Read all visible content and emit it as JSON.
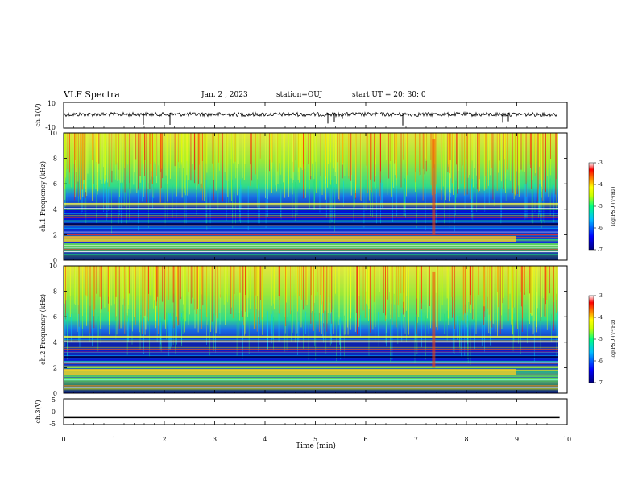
{
  "header": {
    "title": "VLF Spectra",
    "date": "Jan. 2 , 2023",
    "station": "station=OUJ",
    "start": "start UT = 20: 30: 0"
  },
  "colors": {
    "spectrum_stops": [
      "#000080",
      "#0000ff",
      "#00bfff",
      "#00ff80",
      "#c8ff00",
      "#ffff00",
      "#ff8000",
      "#ff0000",
      "#ffffff"
    ],
    "trace": "#000000"
  },
  "chart_data": [
    {
      "type": "line",
      "panel": "ch1-waveform",
      "ylabel": "ch.1(V)",
      "ylim": [
        -10,
        10
      ],
      "yticks": [
        "10",
        "-10"
      ],
      "xlim": [
        0,
        10
      ],
      "grid": false
    },
    {
      "type": "heatmap",
      "panel": "ch1-spectrogram",
      "ylabel": "ch.1 Frequency (kHz)",
      "ylim": [
        0,
        10
      ],
      "yticks": [
        "0",
        "2",
        "4",
        "6",
        "8",
        "10"
      ],
      "xlim": [
        0,
        10
      ],
      "colorbar": {
        "label": "log(PSD)(V²/Hz)",
        "range": [
          -7,
          -3
        ],
        "ticks": [
          "-3",
          "-4",
          "-5",
          "-6",
          "-7"
        ]
      }
    },
    {
      "type": "heatmap",
      "panel": "ch2-spectrogram",
      "ylabel": "ch.2 Frequency (kHz)",
      "ylim": [
        0,
        10
      ],
      "yticks": [
        "0",
        "2",
        "4",
        "6",
        "8",
        "10"
      ],
      "xlim": [
        0,
        10
      ],
      "colorbar": {
        "label": "log(PSD)(V²/Hz)",
        "range": [
          -7,
          -3
        ],
        "ticks": [
          "-3",
          "-4",
          "-5",
          "-6",
          "-7"
        ]
      }
    },
    {
      "type": "line",
      "panel": "ch3-waveform",
      "ylabel": "ch.3(V)",
      "ylim": [
        -5,
        5
      ],
      "yticks": [
        "5",
        "0",
        "-5"
      ],
      "xlim": [
        0,
        10
      ],
      "series": [
        {
          "x": [
            0,
            9.85
          ],
          "values": [
            -2.3,
            -2.3
          ]
        }
      ]
    }
  ],
  "x_axis": {
    "label": "Time (min)",
    "ticks": [
      "0",
      "1",
      "2",
      "3",
      "4",
      "5",
      "6",
      "7",
      "8",
      "9",
      "10"
    ]
  }
}
